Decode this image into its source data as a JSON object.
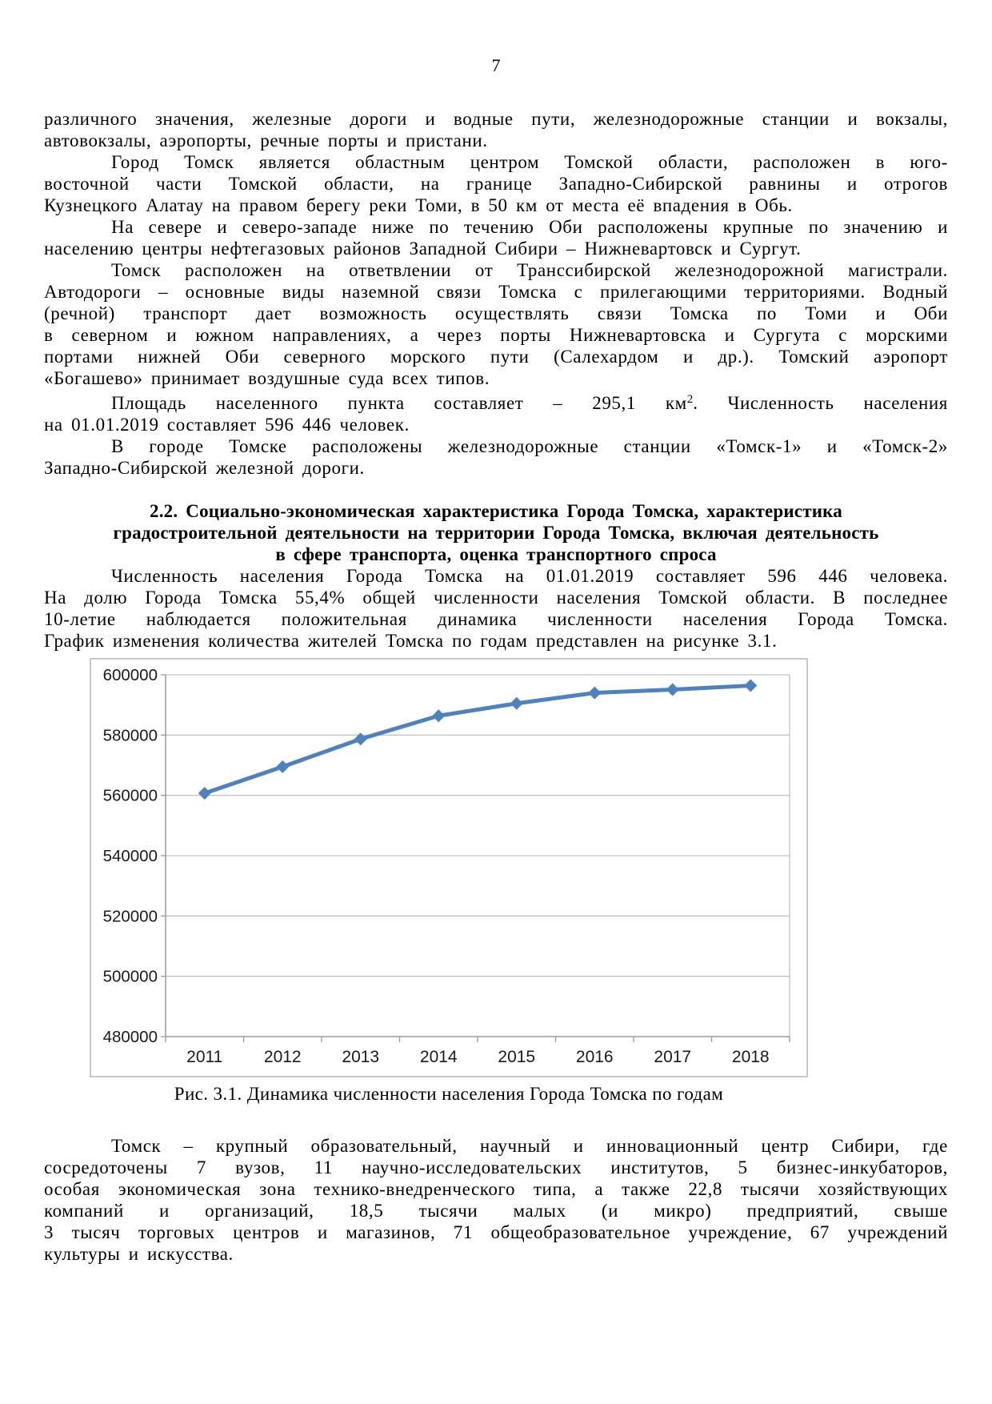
{
  "page_number": "7",
  "paragraphs": {
    "p1": {
      "lines": [
        "различного значения, железные дороги и водные пути, железнодорожные станции и вокзалы,",
        "автовокзалы, аэропорты, речные порты и пристани."
      ]
    },
    "p2": {
      "lines": [
        "Город Томск является областным центром Томской области, расположен в юго-",
        "восточной части Томской области, на границе Западно-Сибирской равнины и отрогов",
        "Кузнецкого Алатау на правом берегу реки Томи, в 50 км от места её впадения в Обь."
      ]
    },
    "p3": {
      "lines": [
        "На севере и северо-западе ниже по течению Оби расположены крупные по значению и",
        "населению центры нефтегазовых районов Западной Сибири – Нижневартовск и Сургут."
      ]
    },
    "p4": {
      "lines": [
        "Томск расположен на ответвлении от Транссибирской железнодорожной магистрали.",
        "Автодороги – основные виды наземной связи Томска с прилегающими территориями. Водный",
        "(речной) транспорт дает возможность осуществлять связи Томска по Томи и Оби",
        "в северном и южном направлениях, а через порты Нижневартовска и Сургута с морскими",
        "портами нижней Оби северного морского пути (Салехардом и др.). Томский аэропорт",
        "«Богашево» принимает воздушные суда всех типов."
      ]
    },
    "p5": {
      "lines": [
        {
          "before": "Площадь населенного пункта составляет – 295,1 км",
          "sup": "2",
          "after": ". Численность населения"
        },
        "на 01.01.2019 составляет 596 446 человек."
      ]
    },
    "p6": {
      "lines": [
        "В городе Томске расположены железнодорожные станции «Томск-1» и «Томск-2»",
        "Западно-Сибирской железной дороги."
      ]
    },
    "heading": {
      "lines": [
        "2.2. Социально-экономическая характеристика Города Томска, характеристика",
        "градостроительной деятельности на территории Города Томска, включая деятельность",
        "в сфере транспорта, оценка транспортного спроса"
      ]
    },
    "p7": {
      "lines": [
        "Численность населения Города Томска на 01.01.2019 составляет 596 446 человека.",
        "На долю Города Томска 55,4% общей численности населения Томской области. В последнее",
        "10-летие наблюдается положительная динамика численности населения Города Томска.",
        "График изменения количества жителей Томска по годам представлен на рисунке 3.1."
      ]
    },
    "p8": {
      "lines": [
        "Томск – крупный образовательный, научный и инновационный центр Сибири, где",
        "сосредоточены 7 вузов, 11 научно-исследовательских институтов, 5 бизнес-инкубаторов,",
        "особая экономическая зона технико-внедренческого типа, а также 22,8 тысячи хозяйствующих",
        "компаний и организаций, 18,5 тысячи малых (и микро) предприятий, свыше",
        "3 тысяч торговых центров и магазинов, 71 общеобразовательное учреждение, 67 учреждений",
        "культуры и искусства."
      ]
    }
  },
  "figure": {
    "caption": "Рис. 3.1. Динамика численности населения Города Томска по годам"
  },
  "chart_data": {
    "type": "line",
    "title": "",
    "categories": [
      "2011",
      "2012",
      "2013",
      "2014",
      "2015",
      "2016",
      "2017",
      "2018"
    ],
    "values": [
      560700,
      569500,
      578700,
      586400,
      590500,
      594000,
      595100,
      596400
    ],
    "xlabel": "",
    "ylabel": "",
    "ylim": [
      480000,
      600000
    ],
    "ytick_step": 20000,
    "ytick_labels": [
      "480000",
      "500000",
      "520000",
      "540000",
      "560000",
      "580000",
      "600000"
    ],
    "grid": true,
    "legend_position": "none",
    "line_color": "#4F81BD",
    "marker": "diamond",
    "grid_color": "#c2c2c2",
    "axis_color": "#9a9a9a",
    "frame_color": "#b3b3b3",
    "label_color": "#1a1a1a"
  }
}
